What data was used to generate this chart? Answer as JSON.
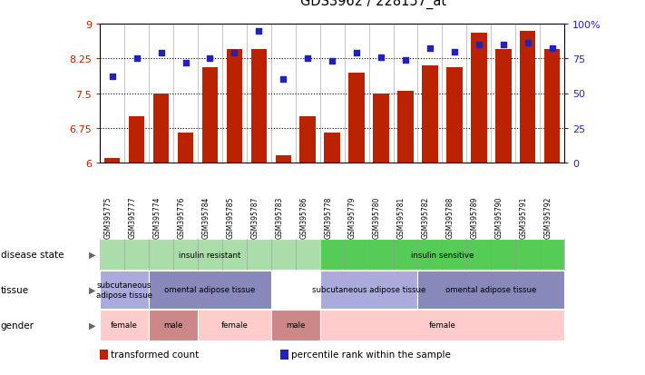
{
  "title": "GDS3962 / 228157_at",
  "samples": [
    "GSM395775",
    "GSM395777",
    "GSM395774",
    "GSM395776",
    "GSM395784",
    "GSM395785",
    "GSM395787",
    "GSM395783",
    "GSM395786",
    "GSM395778",
    "GSM395779",
    "GSM395780",
    "GSM395781",
    "GSM395782",
    "GSM395788",
    "GSM395789",
    "GSM395790",
    "GSM395791",
    "GSM395792"
  ],
  "bar_values": [
    6.1,
    7.0,
    7.5,
    6.65,
    8.05,
    8.45,
    8.45,
    6.15,
    7.0,
    6.65,
    7.95,
    7.5,
    7.55,
    8.1,
    8.05,
    8.8,
    8.45,
    8.85,
    8.45
  ],
  "dot_values": [
    62,
    75,
    79,
    72,
    75,
    79,
    95,
    60,
    75,
    73,
    79,
    76,
    74,
    82,
    80,
    85,
    85,
    86,
    82
  ],
  "ylim_left": [
    6.0,
    9.0
  ],
  "ylim_right": [
    0,
    100
  ],
  "yticks_left": [
    6.0,
    6.75,
    7.5,
    8.25,
    9.0
  ],
  "yticks_right": [
    0,
    25,
    50,
    75,
    100
  ],
  "ytick_labels_left": [
    "6",
    "6.75",
    "7.5",
    "8.25",
    "9"
  ],
  "ytick_labels_right": [
    "0",
    "25",
    "50",
    "75",
    "100%"
  ],
  "hlines": [
    6.75,
    7.5,
    8.25
  ],
  "bar_color": "#bb2200",
  "dot_color": "#2222bb",
  "col_sep_color": "#999999",
  "plot_bg": "#ffffff",
  "xtick_bg": "#cccccc",
  "disease_state_groups": [
    {
      "label": "insulin resistant",
      "start": 0,
      "end": 9,
      "color": "#aaddaa"
    },
    {
      "label": "insulin sensitive",
      "start": 9,
      "end": 19,
      "color": "#55cc55"
    }
  ],
  "tissue_groups": [
    {
      "label": "subcutaneous\nadipose tissue",
      "start": 0,
      "end": 2,
      "color": "#aaaadd"
    },
    {
      "label": "omental adipose tissue",
      "start": 2,
      "end": 7,
      "color": "#8888bb"
    },
    {
      "label": "subcutaneous adipose tissue",
      "start": 9,
      "end": 13,
      "color": "#aaaadd"
    },
    {
      "label": "omental adipose tissue",
      "start": 13,
      "end": 19,
      "color": "#8888bb"
    }
  ],
  "gender_groups": [
    {
      "label": "female",
      "start": 0,
      "end": 2,
      "color": "#ffcccc"
    },
    {
      "label": "male",
      "start": 2,
      "end": 4,
      "color": "#cc8888"
    },
    {
      "label": "female",
      "start": 4,
      "end": 7,
      "color": "#ffcccc"
    },
    {
      "label": "male",
      "start": 7,
      "end": 9,
      "color": "#cc8888"
    },
    {
      "label": "female",
      "start": 9,
      "end": 19,
      "color": "#ffcccc"
    }
  ],
  "row_labels": [
    "disease state",
    "tissue",
    "gender"
  ],
  "legend_items": [
    {
      "label": "transformed count",
      "color": "#bb2200"
    },
    {
      "label": "percentile rank within the sample",
      "color": "#2222bb"
    }
  ]
}
